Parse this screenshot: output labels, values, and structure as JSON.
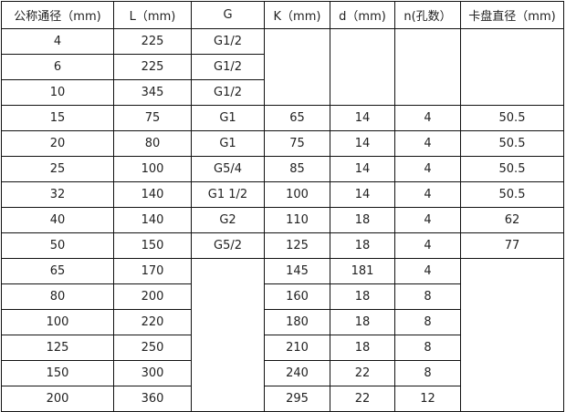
{
  "headers": [
    "公称通径（mm)",
    "L（mm)",
    "G",
    "K（mm)",
    "d（mm)",
    "n(孔数）",
    "卡盘直径（mm)"
  ],
  "rows": [
    [
      "4",
      "225",
      "G1/2",
      "",
      "",
      "",
      ""
    ],
    [
      "6",
      "225",
      "G1/2",
      "",
      "",
      "",
      ""
    ],
    [
      "10",
      "345",
      "G1/2",
      "",
      "",
      "",
      ""
    ],
    [
      "15",
      "75",
      "G1",
      "65",
      "14",
      "4",
      "50.5"
    ],
    [
      "20",
      "80",
      "G1",
      "75",
      "14",
      "4",
      "50.5"
    ],
    [
      "25",
      "100",
      "G5/4",
      "85",
      "14",
      "4",
      "50.5"
    ],
    [
      "32",
      "140",
      "G1  1/2",
      "100",
      "14",
      "4",
      "50.5"
    ],
    [
      "40",
      "140",
      "G2",
      "110",
      "18",
      "4",
      "62"
    ],
    [
      "50",
      "150",
      "G5/2",
      "125",
      "18",
      "4",
      "77"
    ],
    [
      "65",
      "170",
      "",
      "145",
      "181",
      "4",
      ""
    ],
    [
      "80",
      "200",
      "",
      "160",
      "18",
      "8",
      ""
    ],
    [
      "100",
      "220",
      "",
      "180",
      "18",
      "8",
      ""
    ],
    [
      "125",
      "250",
      "",
      "210",
      "18",
      "8",
      ""
    ],
    [
      "150",
      "300",
      "",
      "240",
      "22",
      "8",
      ""
    ],
    [
      "200",
      "360",
      "",
      "295",
      "22",
      "12",
      ""
    ]
  ]
}
